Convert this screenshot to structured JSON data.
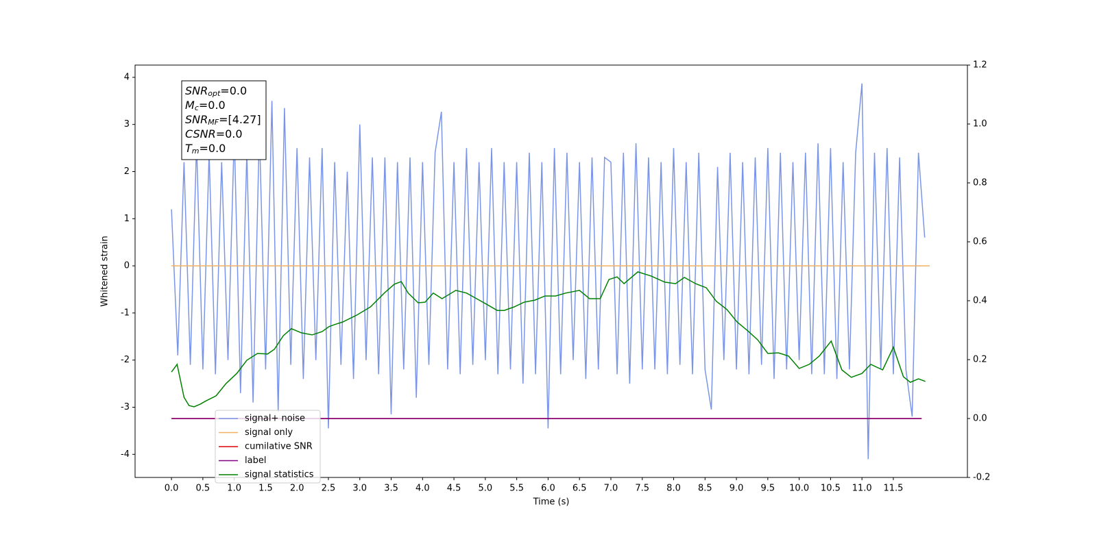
{
  "chart_data": {
    "type": "line",
    "xlabel": "Time (s)",
    "ylabel": "Whitened strain",
    "xlim": [
      -0.58,
      12.68
    ],
    "ylim": [
      -4.49,
      4.26
    ],
    "y2lim": [
      -0.2,
      1.2
    ],
    "xticks": [
      {
        "value": 0,
        "label": "0.0"
      },
      0.5,
      {
        "value": 1,
        "label": "1.0"
      },
      1.5,
      {
        "value": 2,
        "label": "2.0"
      },
      2.5,
      {
        "value": 3,
        "label": "3.0"
      },
      3.5,
      {
        "value": 4,
        "label": "4.0"
      },
      4.5,
      {
        "value": 5,
        "label": "5.0"
      },
      5.5,
      {
        "value": 6,
        "label": "6.0"
      },
      6.5,
      {
        "value": 7,
        "label": "7.0"
      },
      7.5,
      {
        "value": 8,
        "label": "8.0"
      },
      8.5,
      {
        "value": 9,
        "label": "9.0"
      },
      9.5,
      {
        "value": 10,
        "label": "10.0"
      },
      10.5,
      {
        "value": 11,
        "label": "11.0"
      },
      11.5
    ],
    "yticks": [
      -4,
      -3,
      -2,
      -1,
      0,
      1,
      2,
      3,
      4
    ],
    "y2ticks": [
      -0.2,
      {
        "value": 0,
        "label": "0.0"
      },
      0.2,
      0.4,
      0.6,
      0.8,
      {
        "value": 1,
        "label": "1.0"
      },
      1.2
    ],
    "legend": "lower left",
    "annotations": [
      {
        "symbol": "SNR",
        "sub": "opt",
        "text": "=0.0"
      },
      {
        "symbol": "M",
        "sub": "c",
        "text": "=0.0"
      },
      {
        "symbol": "SNR",
        "sub": "MF",
        "text": "=[4.27]"
      },
      {
        "symbol": "CSNR",
        "sub": null,
        "text": "=0.0"
      },
      {
        "symbol": "T",
        "sub": "m",
        "text": "=0.0"
      }
    ],
    "series": [
      {
        "name": "signal+ noise",
        "color": "#7a95e8",
        "axis": "y",
        "x": [
          0,
          0.1,
          0.2,
          0.3,
          0.4,
          0.5,
          0.6,
          0.7,
          0.8,
          0.9,
          1,
          1.1,
          1.2,
          1.3,
          1.4,
          1.5,
          1.6,
          1.7,
          1.8,
          1.9,
          2,
          2.1,
          2.2,
          2.3,
          2.4,
          2.5,
          2.6,
          2.7,
          2.8,
          2.9,
          3,
          3.1,
          3.2,
          3.3,
          3.4,
          3.5,
          3.6,
          3.7,
          3.8,
          3.9,
          4,
          4.1,
          4.2,
          4.3,
          4.4,
          4.5,
          4.6,
          4.7,
          4.8,
          4.9,
          5,
          5.1,
          5.2,
          5.3,
          5.4,
          5.5,
          5.6,
          5.7,
          5.8,
          5.9,
          6,
          6.1,
          6.2,
          6.3,
          6.4,
          6.5,
          6.6,
          6.7,
          6.8,
          6.9,
          7,
          7.1,
          7.2,
          7.3,
          7.4,
          7.5,
          7.6,
          7.7,
          7.8,
          7.9,
          8,
          8.1,
          8.2,
          8.3,
          8.4,
          8.5,
          8.6,
          8.7,
          8.8,
          8.9,
          9,
          9.1,
          9.2,
          9.3,
          9.4,
          9.5,
          9.6,
          9.7,
          9.8,
          9.9,
          10,
          10.1,
          10.2,
          10.3,
          10.4,
          10.5,
          10.6,
          10.7,
          10.8,
          10.9,
          11,
          11.1,
          11.2,
          11.3,
          11.4,
          11.5,
          11.6,
          11.7,
          11.8,
          11.9,
          12
        ],
        "values": [
          1.2,
          -1.9,
          2.2,
          -2.1,
          2.6,
          -2.2,
          2.4,
          -2.3,
          2.2,
          -2.0,
          2.8,
          -2.7,
          2.4,
          -2.9,
          2.9,
          -2.2,
          3.5,
          -3.1,
          3.35,
          -2.1,
          2.5,
          -2.4,
          2.3,
          -2.0,
          2.5,
          -3.45,
          2.2,
          -2.1,
          2.0,
          -2.4,
          3.0,
          -2.0,
          2.3,
          -2.3,
          2.3,
          -3.15,
          2.2,
          -2.2,
          2.3,
          -2.8,
          2.2,
          -2.1,
          2.4,
          3.27,
          -2.2,
          2.2,
          -2.3,
          2.5,
          -2.1,
          2.2,
          -2.0,
          2.5,
          -2.3,
          2.2,
          -2.2,
          2.2,
          -2.5,
          2.4,
          -2.3,
          2.2,
          -3.45,
          2.5,
          -2.3,
          2.4,
          -2.0,
          2.2,
          -2.4,
          2.3,
          -2.2,
          2.3,
          2.2,
          -2.3,
          2.4,
          -2.5,
          2.6,
          -2.2,
          2.3,
          -2.2,
          2.2,
          -2.3,
          2.5,
          -2.1,
          2.2,
          -2.3,
          2.4,
          -2.2,
          -3.05,
          2.1,
          -2.0,
          2.4,
          -2.2,
          2.2,
          -2.3,
          2.3,
          -2.1,
          2.5,
          -2.4,
          2.4,
          -2.2,
          2.2,
          -2.0,
          2.4,
          -2.3,
          2.6,
          -2.3,
          2.5,
          -2.4,
          2.2,
          -2.2,
          2.4,
          3.87,
          -4.1,
          2.4,
          -2.2,
          2.5,
          -2.3,
          2.3,
          -2.2,
          -3.2,
          2.4,
          0.6
        ]
      },
      {
        "name": "signal only",
        "color": "#f0b060",
        "axis": "y",
        "x": [
          0,
          12.08
        ],
        "values": [
          0,
          0
        ]
      },
      {
        "name": "cumilative SNR",
        "color": "#e00000",
        "axis": "y2",
        "x": [
          0,
          11.95
        ],
        "values": [
          0,
          0
        ]
      },
      {
        "name": "label",
        "color": "#800080",
        "axis": "y2",
        "x": [
          0,
          11.95
        ],
        "values": [
          0,
          0
        ]
      },
      {
        "name": "signal statistics",
        "color": "#008000",
        "axis": "y2",
        "x": [
          0,
          0.09,
          0.2,
          0.28,
          0.36,
          0.46,
          0.55,
          0.71,
          0.87,
          1.04,
          1.2,
          1.37,
          1.53,
          1.64,
          1.78,
          1.91,
          2.07,
          2.24,
          2.4,
          2.51,
          2.6,
          2.73,
          2.95,
          3.17,
          3.39,
          3.55,
          3.66,
          3.77,
          3.93,
          4.04,
          4.17,
          4.31,
          4.53,
          4.7,
          4.86,
          5.02,
          5.19,
          5.3,
          5.46,
          5.62,
          5.79,
          5.95,
          6.12,
          6.28,
          6.5,
          6.66,
          6.83,
          6.97,
          7.1,
          7.21,
          7.43,
          7.64,
          7.86,
          8.03,
          8.17,
          8.35,
          8.52,
          8.68,
          8.85,
          9.01,
          9.18,
          9.34,
          9.5,
          9.67,
          9.83,
          10.0,
          10.16,
          10.32,
          10.51,
          10.68,
          10.83,
          11.0,
          11.14,
          11.33,
          11.5,
          11.66,
          11.77,
          11.9,
          12.01
        ],
        "values": [
          0.158,
          0.184,
          0.072,
          0.044,
          0.04,
          0.049,
          0.06,
          0.077,
          0.119,
          0.153,
          0.198,
          0.221,
          0.219,
          0.235,
          0.281,
          0.305,
          0.291,
          0.284,
          0.295,
          0.312,
          0.319,
          0.328,
          0.351,
          0.379,
          0.426,
          0.456,
          0.465,
          0.426,
          0.393,
          0.395,
          0.426,
          0.407,
          0.435,
          0.426,
          0.407,
          0.388,
          0.367,
          0.367,
          0.379,
          0.395,
          0.402,
          0.416,
          0.416,
          0.426,
          0.435,
          0.407,
          0.407,
          0.472,
          0.481,
          0.458,
          0.498,
          0.484,
          0.463,
          0.458,
          0.479,
          0.458,
          0.444,
          0.398,
          0.37,
          0.328,
          0.298,
          0.267,
          0.221,
          0.223,
          0.212,
          0.17,
          0.184,
          0.212,
          0.263,
          0.165,
          0.14,
          0.153,
          0.184,
          0.165,
          0.242,
          0.142,
          0.123,
          0.135,
          0.126
        ]
      }
    ]
  }
}
